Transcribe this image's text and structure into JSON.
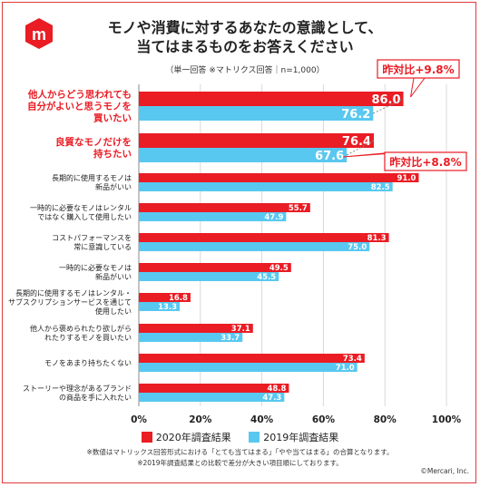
{
  "title_line1": "モノや消費に対するあなたの意識として、",
  "title_line2": "当てはまるものをお答えください",
  "subtitle": "（単一回答 ※マトリクス回答｜n=1,000）",
  "logo_glyph": "m",
  "colors": {
    "series2020": "#ea1c24",
    "series2019": "#59c8f0",
    "accent": "#ea1c24"
  },
  "legend": {
    "series2020": "2020年調査結果",
    "series2019": "2019年調査結果"
  },
  "notes_line1": "※数値はマトリックス回答形式における「とても当てはまる」「やや当てはまる」の合算となります。",
  "notes_line2": "※2019年調査結果との比較で差分が大きい項目順にしております。",
  "credit": "©Mercari, Inc.",
  "chart_data": {
    "type": "bar",
    "orientation": "horizontal",
    "categories": [
      {
        "lines": [
          "他人からどう思われても",
          "自分がよいと思うモノを",
          "買いたい"
        ],
        "highlight": true
      },
      {
        "lines": [
          "良質なモノだけを",
          "持ちたい"
        ],
        "highlight": true
      },
      {
        "lines": [
          "長期的に使用するモノは",
          "新品がいい"
        ],
        "highlight": false
      },
      {
        "lines": [
          "一時的に必要なモノはレンタル",
          "ではなく購入して使用したい"
        ],
        "highlight": false
      },
      {
        "lines": [
          "コストパフォーマンスを",
          "常に意識している"
        ],
        "highlight": false
      },
      {
        "lines": [
          "一時的に必要なモノは",
          "新品がいい"
        ],
        "highlight": false
      },
      {
        "lines": [
          "長期的に使用するモノはレンタル・",
          "サブスクリプションサービスを通じて",
          "使用したい"
        ],
        "highlight": false
      },
      {
        "lines": [
          "他人から褒められたり欲しがら",
          "れたりするモノを買いたい"
        ],
        "highlight": false
      },
      {
        "lines": [
          "モノをあまり持ちたくない"
        ],
        "highlight": false
      },
      {
        "lines": [
          "ストーリーや理念があるブランド",
          "の商品を手に入れたい"
        ],
        "highlight": false
      }
    ],
    "series": [
      {
        "name": "2020年調査結果",
        "values": [
          86.0,
          76.4,
          91.0,
          55.7,
          81.3,
          49.5,
          16.8,
          37.1,
          73.4,
          48.8
        ]
      },
      {
        "name": "2019年調査結果",
        "values": [
          76.2,
          67.6,
          82.5,
          47.9,
          75.0,
          45.5,
          13.3,
          33.7,
          71.0,
          47.3
        ]
      }
    ],
    "value_labels_2020": [
      "86.0",
      "76.4",
      "91.0",
      "55.7",
      "81.3",
      "49.5",
      "16.8",
      "37.1",
      "73.4",
      "48.8"
    ],
    "value_labels_2019": [
      "76.2",
      "67.6",
      "82.5",
      "47.9",
      "75.0",
      "45.5",
      "13.3",
      "33.7",
      "71.0",
      "47.3"
    ],
    "xlim": [
      0,
      100
    ],
    "xticks": [
      "0%",
      "20%",
      "40%",
      "60%",
      "80%",
      "100%"
    ],
    "callouts": [
      {
        "text": "昨対比+9.8%",
        "category_index": 0
      },
      {
        "text": "昨対比+8.8%",
        "category_index": 1
      }
    ],
    "grid": true
  }
}
